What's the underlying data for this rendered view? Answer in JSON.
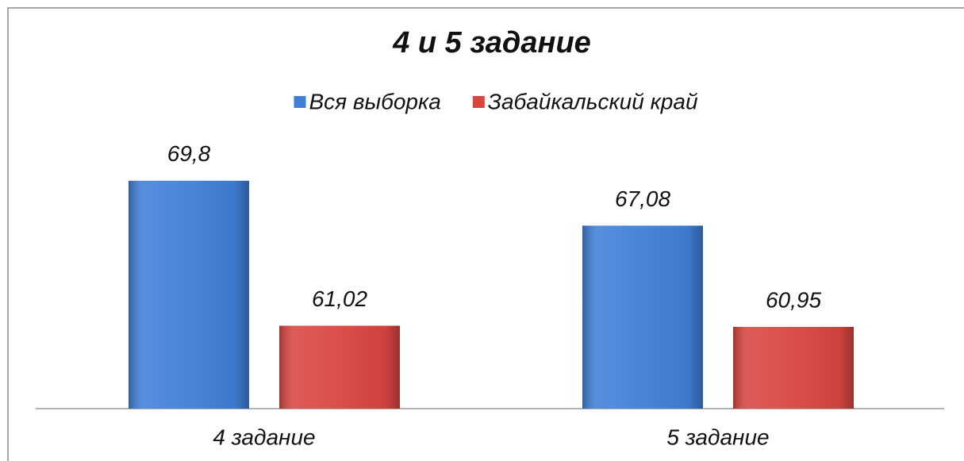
{
  "chart_data": {
    "type": "bar",
    "title": "4 и 5 задание",
    "categories": [
      "4 задание",
      "5 задание"
    ],
    "series": [
      {
        "name": "Вся выборка",
        "color": "#3f7fd6",
        "values": [
          69.8,
          67.08
        ],
        "value_labels": [
          "69,8",
          "67,08"
        ]
      },
      {
        "name": "Забайкальский край",
        "color": "#d94541",
        "values": [
          61.02,
          60.95
        ],
        "value_labels": [
          "61,02",
          "60,95"
        ]
      }
    ],
    "ylim": [
      56,
      72
    ]
  }
}
